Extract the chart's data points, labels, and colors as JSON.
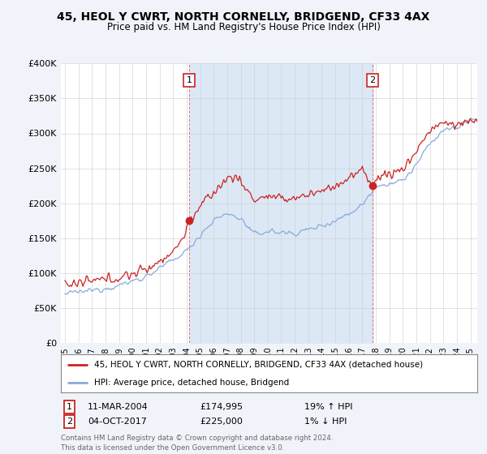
{
  "title": "45, HEOL Y CWRT, NORTH CORNELLY, BRIDGEND, CF33 4AX",
  "subtitle": "Price paid vs. HM Land Registry's House Price Index (HPI)",
  "ylim": [
    0,
    400000
  ],
  "yticks": [
    0,
    50000,
    100000,
    150000,
    200000,
    250000,
    300000,
    350000,
    400000
  ],
  "ytick_labels": [
    "£0",
    "£50K",
    "£100K",
    "£150K",
    "£200K",
    "£250K",
    "£300K",
    "£350K",
    "£400K"
  ],
  "red_color": "#cc2222",
  "blue_color": "#88aadd",
  "shade_color": "#dce8f5",
  "background_color": "#f0f4fa",
  "plot_bg_color": "#ffffff",
  "sale1_year": 2004.2,
  "sale1_value": 174995,
  "sale2_year": 2017.75,
  "sale2_value": 225000,
  "legend_line1": "45, HEOL Y CWRT, NORTH CORNELLY, BRIDGEND, CF33 4AX (detached house)",
  "legend_line2": "HPI: Average price, detached house, Bridgend",
  "ann1_box": "1",
  "ann1_date": "11-MAR-2004",
  "ann1_price": "£174,995",
  "ann1_hpi": "19% ↑ HPI",
  "ann2_box": "2",
  "ann2_date": "04-OCT-2017",
  "ann2_price": "£225,000",
  "ann2_hpi": "1% ↓ HPI",
  "footer": "Contains HM Land Registry data © Crown copyright and database right 2024.\nThis data is licensed under the Open Government Licence v3.0."
}
